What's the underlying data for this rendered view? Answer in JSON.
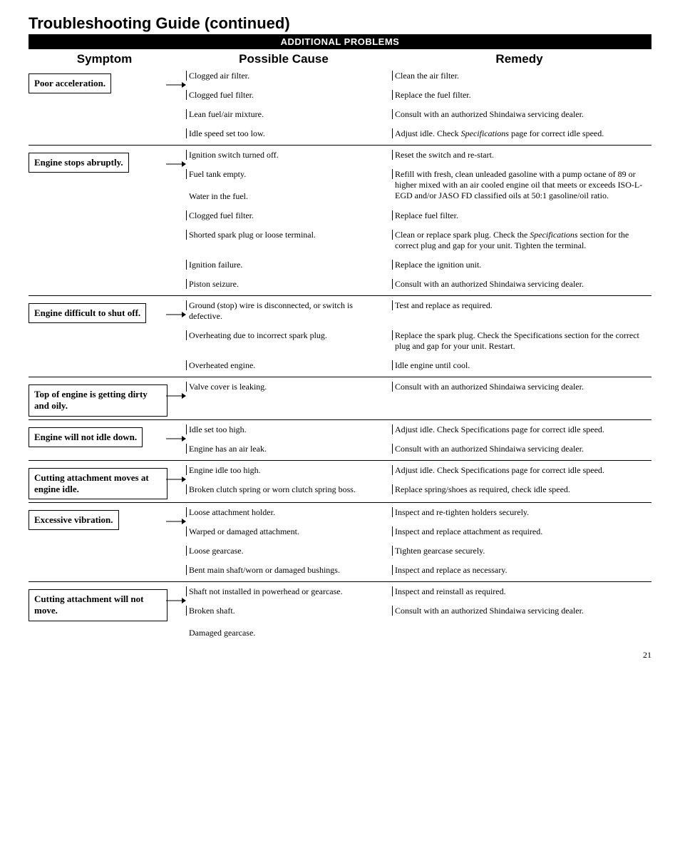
{
  "title": "Troubleshooting Guide",
  "title_cont": "(continued)",
  "header_bar": "ADDITIONAL PROBLEMS",
  "col_headers": {
    "symptom": "Symptom",
    "cause": "Possible Cause",
    "remedy": "Remedy"
  },
  "sections": [
    {
      "symptom": "Poor acceleration.",
      "rows": [
        {
          "cause": "Clogged air filter.",
          "remedy": "Clean the air filter."
        },
        {
          "cause": "Clogged fuel filter.",
          "remedy": "Replace the fuel filter."
        },
        {
          "cause": "Lean fuel/air mixture.",
          "remedy": "Consult with an authorized Shindaiwa servicing dealer."
        },
        {
          "cause": "Idle speed set too low.",
          "remedy_pre": "Adjust idle. Check ",
          "remedy_italic": "Specifications",
          "remedy_post": " page for correct idle speed."
        }
      ]
    },
    {
      "symptom": "Engine stops abruptly.",
      "rows": [
        {
          "cause": "Ignition switch turned off.",
          "remedy": "Reset the switch and re-start."
        },
        {
          "cause": "Fuel tank empty.",
          "remedy": "Refill with fresh, clean unleaded gasoline with a pump octane of 89 or higher mixed with an air cooled engine oil that meets or exceeds ISO-L-EGD and/or JASO FD classified oils at 50:1 gasoline/oil ratio.",
          "cause2": "Water in the fuel."
        },
        {
          "cause": "Clogged fuel filter.",
          "remedy": "Replace fuel filter."
        },
        {
          "cause": "Shorted spark plug or loose terminal.",
          "remedy_pre": "Clean or replace spark plug. Check the ",
          "remedy_italic": "Specifications",
          "remedy_post": " section for the correct plug and gap for your unit.  Tighten the terminal."
        },
        {
          "cause": "Ignition failure.",
          "remedy": "Replace the ignition unit."
        },
        {
          "cause": "Piston seizure.",
          "remedy": "Consult with an authorized Shindaiwa servicing dealer."
        }
      ]
    },
    {
      "symptom": "Engine difficult to shut off.",
      "rows": [
        {
          "cause": "Ground (stop) wire is disconnected, or switch is defective.",
          "remedy": "Test and replace as required."
        },
        {
          "cause": "Overheating due to incorrect spark plug.",
          "remedy": "Replace the spark plug. Check the Specifications section for the correct plug and gap for your unit. Restart."
        },
        {
          "cause": "Overheated engine.",
          "remedy": "Idle engine until cool."
        }
      ]
    },
    {
      "symptom": "Top of engine is getting dirty and oily.",
      "rows": [
        {
          "cause": "Valve cover is leaking.",
          "remedy": "Consult with an authorized Shindaiwa servicing dealer."
        }
      ]
    },
    {
      "symptom": "Engine will not idle down.",
      "rows": [
        {
          "cause": "Idle set too high.",
          "remedy": "Adjust idle. Check Specifications page for correct idle speed."
        },
        {
          "cause": "Engine has an air leak.",
          "remedy": "Consult with an authorized Shindaiwa servicing dealer."
        }
      ]
    },
    {
      "symptom": "Cutting attachment moves at engine idle.",
      "rows": [
        {
          "cause": "Engine idle too high.",
          "remedy": "Adjust idle. Check Specifications page for correct idle speed."
        },
        {
          "cause": "Broken clutch spring or worn clutch spring boss.",
          "remedy": "Replace spring/shoes as required, check idle speed."
        }
      ]
    },
    {
      "symptom": "Excessive vibration.",
      "rows": [
        {
          "cause": "Loose attachment holder.",
          "remedy": "Inspect and re-tighten holders securely."
        },
        {
          "cause": "Warped or damaged attachment.",
          "remedy": "Inspect and replace attachment as required."
        },
        {
          "cause": "Loose gearcase.",
          "remedy": "Tighten gearcase securely."
        },
        {
          "cause": "Bent main shaft/worn or damaged bushings.",
          "remedy": "Inspect and replace as necessary."
        }
      ]
    },
    {
      "symptom": "Cutting attachment will not move.",
      "rows": [
        {
          "cause": "Shaft not installed in powerhead or gearcase.",
          "remedy": "Inspect and reinstall as required."
        },
        {
          "cause": "Broken shaft.",
          "remedy": "Consult with an authorized Shindaiwa servicing dealer.",
          "cause2": "Damaged gearcase."
        }
      ]
    }
  ],
  "page_number": "21"
}
